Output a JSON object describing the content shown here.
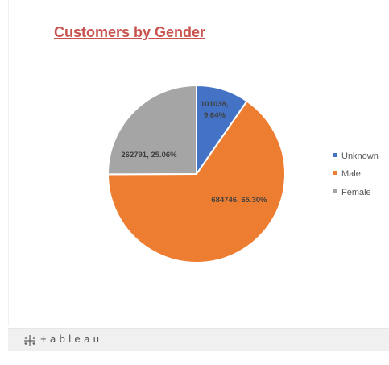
{
  "dashboard": {
    "title": "Customers by Gender",
    "brand": "+ableau",
    "title_color": "#c8534f"
  },
  "chart_data": {
    "type": "pie",
    "title": "Customers by Gender",
    "slices": [
      {
        "name": "Unknown",
        "value": 101038,
        "percent": 9.64,
        "color": "#4472c4"
      },
      {
        "name": "Male",
        "value": 684746,
        "percent": 65.3,
        "color": "#ed7d31"
      },
      {
        "name": "Female",
        "value": 262791,
        "percent": 25.06,
        "color": "#a5a5a5"
      }
    ],
    "data_labels": [
      "101038, 9.64%",
      "684746, 65.30%",
      "262791, 25.06%"
    ],
    "legend": {
      "position": "right",
      "entries": [
        "Unknown",
        "Male",
        "Female"
      ]
    }
  }
}
